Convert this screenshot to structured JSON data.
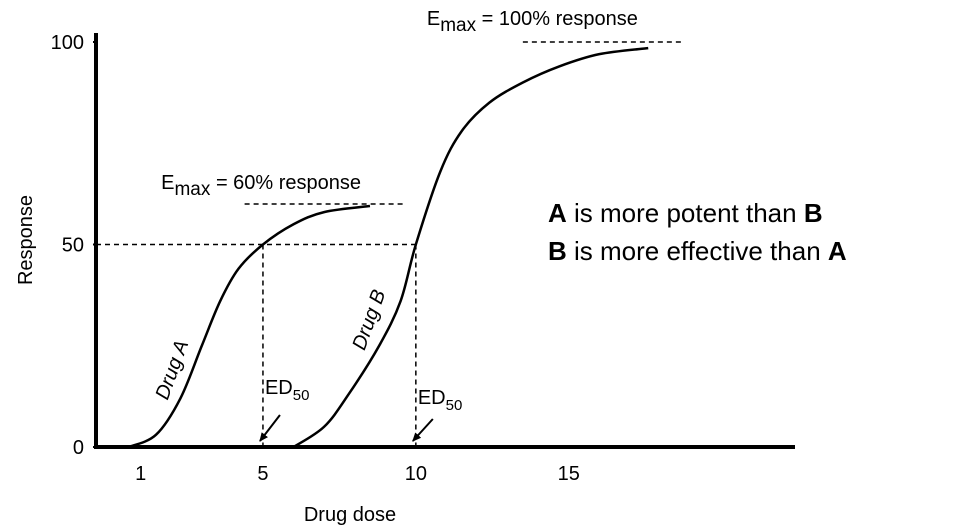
{
  "chart_data": {
    "type": "line",
    "xlabel": "Drug dose",
    "ylabel": "Response",
    "xlim": [
      -0.46,
      22.4
    ],
    "ylim": [
      0,
      102
    ],
    "xticks": [
      1,
      5,
      10,
      15
    ],
    "yticks": [
      0,
      50,
      100
    ],
    "grid": false,
    "series": [
      {
        "name": "Drug A",
        "color": "#000000",
        "x": [
          0.6,
          1.5,
          2.3,
          3.0,
          3.6,
          4.2,
          5,
          6,
          7,
          8.5
        ],
        "values": [
          0,
          3,
          12,
          25,
          36,
          44,
          50,
          55,
          58,
          59.5
        ]
      },
      {
        "name": "Drug B",
        "color": "#000000",
        "x": [
          6,
          7,
          7.8,
          8.8,
          9.5,
          10,
          10.8,
          11.5,
          12.4,
          13.5,
          14.7,
          16,
          17.6
        ],
        "values": [
          0,
          5,
          13,
          25,
          36,
          50,
          68,
          78,
          85,
          90,
          94,
          97,
          98.5
        ]
      }
    ],
    "reference": {
      "y": 50,
      "x": [
        5,
        10
      ]
    },
    "ed50_label": {
      "main": "ED",
      "sub": "50"
    },
    "emax_lines": [
      {
        "y": 60,
        "x": [
          4.4,
          9.6
        ],
        "main": "E",
        "sub": "max",
        "rest": " = 60% response"
      },
      {
        "y": 100,
        "x": [
          13.5,
          18.7
        ],
        "main": "E",
        "sub": "max",
        "rest": " = 100% response"
      }
    ],
    "statements": [
      [
        {
          "text": "A",
          "bold": true
        },
        {
          "text": " is more potent than ",
          "bold": false
        },
        {
          "text": "B",
          "bold": true
        }
      ],
      [
        {
          "text": "B",
          "bold": true
        },
        {
          "text": " is more effective than ",
          "bold": false
        },
        {
          "text": "A",
          "bold": true
        }
      ]
    ]
  }
}
